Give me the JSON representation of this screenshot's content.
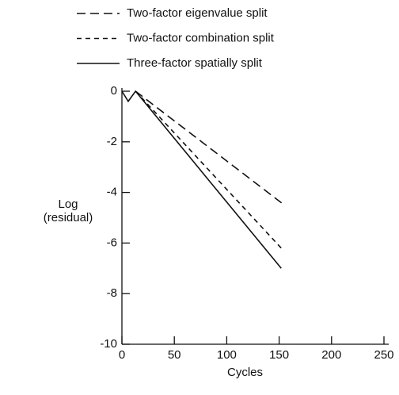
{
  "chart_data": {
    "type": "line",
    "xlabel": "Cycles",
    "ylabel": [
      "Log",
      "(residual)"
    ],
    "xlim": [
      0,
      250
    ],
    "ylim": [
      -10,
      0
    ],
    "xticks": [
      0,
      50,
      100,
      150,
      200,
      250
    ],
    "yticks": [
      0,
      -2,
      -4,
      -6,
      -8,
      -10
    ],
    "grid": false,
    "series": [
      {
        "name": "Two-factor eigenvalue split",
        "color": "#111111",
        "dash": "long",
        "x": [
          13,
          155
        ],
        "values": [
          0,
          -4.5
        ]
      },
      {
        "name": "Two-factor combination split",
        "color": "#111111",
        "dash": "short",
        "x": [
          13,
          152
        ],
        "values": [
          0,
          -6.2
        ]
      },
      {
        "name": "Three-factor spatially split",
        "color": "#111111",
        "dash": "solid",
        "x": [
          0,
          6,
          13,
          152
        ],
        "values": [
          0,
          -0.4,
          0,
          -7
        ]
      }
    ]
  }
}
